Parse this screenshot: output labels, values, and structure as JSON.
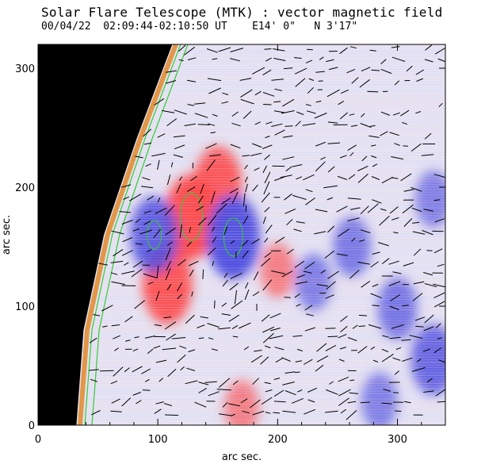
{
  "chart_data": {
    "type": "heatmap",
    "title": "Solar Flare Telescope (MTK) : vector magnetic field",
    "subtitle": "00/04/22  02:09:44-02:10:50 UT    E14' 0\"   N 3'17\"",
    "xlabel": "arc sec.",
    "ylabel": "arc sec.",
    "xlim": [
      0,
      340
    ],
    "ylim": [
      0,
      320
    ],
    "x_ticks": [
      0,
      100,
      200,
      300
    ],
    "y_ticks": [
      0,
      100,
      200,
      300
    ],
    "legend": "none",
    "colors": {
      "positive_polarity": "#ff4040",
      "negative_polarity": "#4848e0",
      "contour": "#33cc33",
      "limb_orange": "#e08a2a",
      "vectors": "#000000",
      "outside_disk": "#000000"
    },
    "features": [
      {
        "polarity": "positive",
        "x": 128,
        "y": 175,
        "strength": 1.0
      },
      {
        "polarity": "positive",
        "x": 108,
        "y": 118,
        "strength": 0.9
      },
      {
        "polarity": "positive",
        "x": 150,
        "y": 202,
        "strength": 0.85
      },
      {
        "polarity": "negative",
        "x": 163,
        "y": 158,
        "strength": 1.0
      },
      {
        "polarity": "negative",
        "x": 97,
        "y": 160,
        "strength": 0.85
      },
      {
        "polarity": "negative",
        "x": 230,
        "y": 120,
        "strength": 0.5
      },
      {
        "polarity": "negative",
        "x": 262,
        "y": 150,
        "strength": 0.55
      },
      {
        "polarity": "negative",
        "x": 300,
        "y": 98,
        "strength": 0.6
      },
      {
        "polarity": "negative",
        "x": 330,
        "y": 55,
        "strength": 0.75
      },
      {
        "polarity": "negative",
        "x": 330,
        "y": 190,
        "strength": 0.5
      },
      {
        "polarity": "negative",
        "x": 285,
        "y": 20,
        "strength": 0.5
      },
      {
        "polarity": "positive",
        "x": 200,
        "y": 130,
        "strength": 0.45
      },
      {
        "polarity": "positive",
        "x": 170,
        "y": 15,
        "strength": 0.45
      }
    ],
    "limb_x_at_y": [
      [
        0,
        32
      ],
      [
        80,
        38
      ],
      [
        160,
        55
      ],
      [
        240,
        82
      ],
      [
        320,
        112
      ]
    ]
  }
}
